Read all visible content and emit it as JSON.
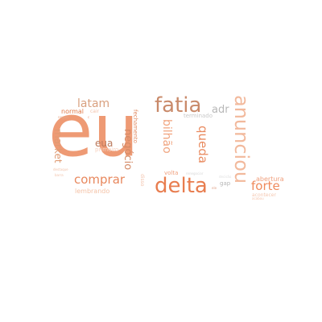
{
  "words": [
    {
      "text": "eu",
      "color": "#ee9a74"
    },
    {
      "text": "fatia",
      "color": "#c98a6a"
    },
    {
      "text": "delta",
      "color": "#e87d4f"
    },
    {
      "text": "anunciou",
      "color": "#f2b99c"
    },
    {
      "text": "latam",
      "color": "#d9a07f"
    },
    {
      "text": "comprar",
      "color": "#e8885e"
    },
    {
      "text": "forte",
      "color": "#ef8a5c"
    },
    {
      "text": "queda",
      "color": "#e98b60"
    },
    {
      "text": "bilhão",
      "color": "#f0a47f"
    },
    {
      "text": "market",
      "color": "#df9a72"
    },
    {
      "text": "eua",
      "color": "#bb7a5c"
    },
    {
      "text": "negócio",
      "color": "#d48a66"
    },
    {
      "text": "adr",
      "color": "#b7b7b7"
    },
    {
      "text": "normal",
      "color": "#e07a48"
    },
    {
      "text": "lembrando",
      "color": "#f4c2a6"
    },
    {
      "text": "abertura",
      "color": "#f0a07e"
    },
    {
      "text": "fechamento",
      "color": "#e08b63"
    },
    {
      "text": "terminado",
      "color": "#c9c9c9"
    },
    {
      "text": "primeiro",
      "color": "#f7d1bf"
    },
    {
      "text": "volta",
      "color": "#f0a07e"
    },
    {
      "text": "gap",
      "color": "#b5b5b5"
    },
    {
      "text": "disso",
      "color": "#f2c0a8"
    },
    {
      "text": "acontecer",
      "color": "#f5c7b0"
    },
    {
      "text": "cair",
      "color": "#f3c3ac"
    },
    {
      "text": "negoci",
      "color": "#e6a88a"
    },
    {
      "text": "c",
      "color": "#e7a082"
    },
    {
      "text": "destaque",
      "color": "#f2c3ab"
    },
    {
      "text": "barra",
      "color": "#f2c3ab"
    },
    {
      "text": "acabou",
      "color": "#f5c4ac"
    },
    {
      "text": "renegociar",
      "color": "#d8d8d8"
    },
    {
      "text": "ele",
      "color": "#e2a58c"
    },
    {
      "text": "decisão",
      "color": "#e0e0e0"
    }
  ]
}
